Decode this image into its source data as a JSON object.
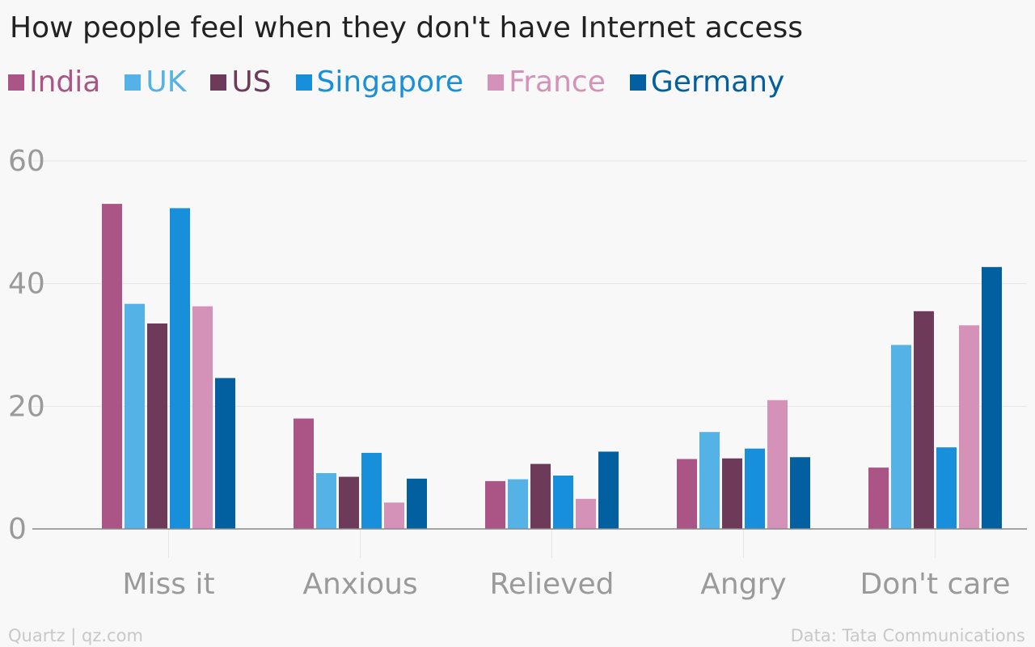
{
  "colors": {
    "background": "#f8f8f8",
    "grid": "#e6e6e6",
    "baseline": "#888888",
    "tick_label": "#9a9a9a",
    "title": "#222222",
    "footer": "#c8c8c8"
  },
  "chart_data": {
    "type": "bar",
    "title": "How people feel when they don't have Internet access",
    "xlabel": "",
    "ylabel": "",
    "ylim": [
      0,
      60
    ],
    "yticks": [
      0,
      20,
      40,
      60
    ],
    "grid": true,
    "legend_position": "top-left",
    "categories": [
      "Miss it",
      "Anxious",
      "Relieved",
      "Angry",
      "Don't care"
    ],
    "series": [
      {
        "name": "India",
        "color": "#ab5587",
        "values": [
          53,
          18,
          7.8,
          11.4,
          10
        ]
      },
      {
        "name": "UK",
        "color": "#54b2e6",
        "values": [
          36.7,
          9.1,
          8.1,
          15.8,
          30
        ]
      },
      {
        "name": "US",
        "color": "#6e3a5a",
        "values": [
          33.5,
          8.5,
          10.6,
          11.5,
          35.5
        ]
      },
      {
        "name": "Singapore",
        "color": "#188fda",
        "values": [
          52.3,
          12.4,
          8.7,
          13.1,
          13.3
        ]
      },
      {
        "name": "France",
        "color": "#d592b8",
        "values": [
          36.3,
          4.3,
          4.9,
          21,
          33.2
        ]
      },
      {
        "name": "Germany",
        "color": "#0360a0",
        "values": [
          24.6,
          8.2,
          12.6,
          11.7,
          42.7
        ]
      }
    ]
  },
  "footer": {
    "source_left": "Quartz | qz.com",
    "source_right": "Data: Tata Communications"
  }
}
